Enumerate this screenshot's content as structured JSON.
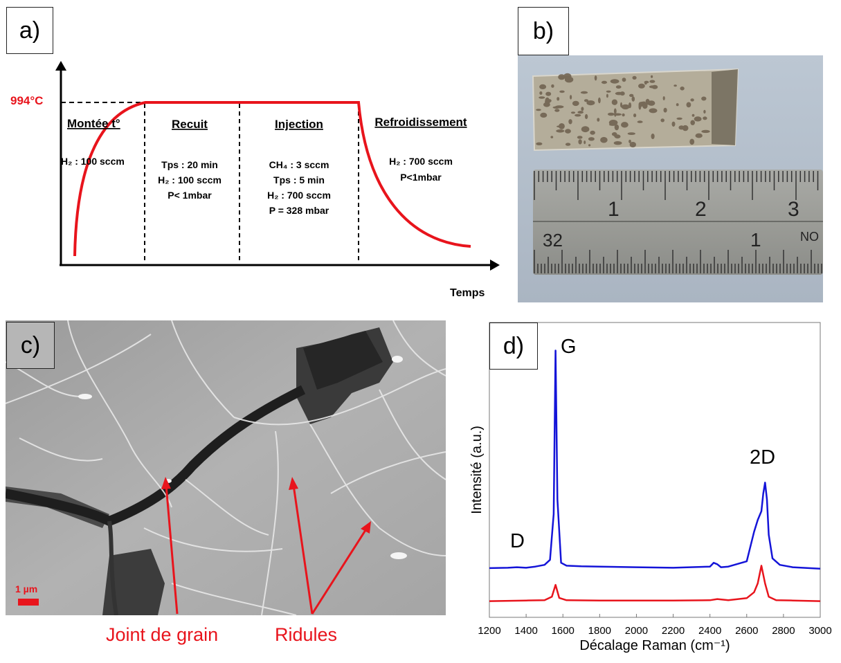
{
  "panel_a": {
    "label": "a)",
    "temp_label": "994°C",
    "x_axis_label": "Temps",
    "stages": [
      {
        "title": "Montée t°",
        "lines": [
          "H₂ : 100 sccm"
        ]
      },
      {
        "title": "Recuit",
        "lines": [
          "Tps : 20 min",
          "H₂ : 100 sccm",
          "P< 1mbar"
        ]
      },
      {
        "title": "Injection",
        "lines": [
          "CH₄ : 3 sccm",
          "Tps : 5 min",
          "H₂ : 700 sccm",
          "P = 328 mbar"
        ]
      },
      {
        "title": "Refroidissement",
        "lines": [
          "H₂ : 700 sccm",
          "P<1mbar"
        ]
      }
    ],
    "curve_color": "#e8141c"
  },
  "panel_b": {
    "label": "b)",
    "ruler_top_numbers": [
      "1",
      "2",
      "3"
    ],
    "ruler_bottom_numbers": [
      "32",
      "1"
    ],
    "ruler_corner_text": "NO"
  },
  "panel_c": {
    "label": "c)",
    "scale_label": "1 µm",
    "annotation_joint": "Joint de grain",
    "annotation_ridules": "Ridules",
    "annotation_color": "#e8141c"
  },
  "panel_d": {
    "label": "d)",
    "peak_labels": {
      "D": "D",
      "G": "G",
      "2D": "2D"
    },
    "chart_data": {
      "type": "line",
      "xlabel": "Décalage Raman (cm⁻¹)",
      "ylabel": "Intensité (a.u.)",
      "xlim": [
        1200,
        3000
      ],
      "xticks": [
        "1200",
        "1400",
        "1600",
        "1800",
        "2000",
        "2200",
        "2400",
        "2600",
        "2800",
        "3000"
      ],
      "ylim": [
        0,
        1
      ],
      "series": [
        {
          "color": "#1414d8",
          "x": [
            1200,
            1300,
            1350,
            1400,
            1450,
            1500,
            1530,
            1550,
            1560,
            1570,
            1590,
            1620,
            1700,
            1800,
            2000,
            2200,
            2400,
            2420,
            2440,
            2460,
            2500,
            2600,
            2640,
            2660,
            2680,
            2690,
            2700,
            2710,
            2720,
            2740,
            2780,
            2850,
            3000
          ],
          "y": [
            0.167,
            0.168,
            0.17,
            0.168,
            0.172,
            0.178,
            0.195,
            0.35,
            0.905,
            0.4,
            0.185,
            0.175,
            0.173,
            0.172,
            0.17,
            0.168,
            0.172,
            0.185,
            0.18,
            0.17,
            0.172,
            0.19,
            0.29,
            0.33,
            0.36,
            0.42,
            0.457,
            0.4,
            0.28,
            0.2,
            0.178,
            0.17,
            0.165
          ]
        },
        {
          "color": "#e8141c",
          "x": [
            1200,
            1400,
            1500,
            1540,
            1560,
            1580,
            1620,
            1800,
            2000,
            2200,
            2400,
            2440,
            2500,
            2600,
            2640,
            2660,
            2680,
            2700,
            2720,
            2760,
            2850,
            3000
          ],
          "y": [
            0.055,
            0.057,
            0.058,
            0.07,
            0.11,
            0.066,
            0.058,
            0.057,
            0.057,
            0.057,
            0.058,
            0.062,
            0.058,
            0.065,
            0.085,
            0.115,
            0.175,
            0.115,
            0.07,
            0.058,
            0.057,
            0.055
          ]
        }
      ]
    }
  }
}
